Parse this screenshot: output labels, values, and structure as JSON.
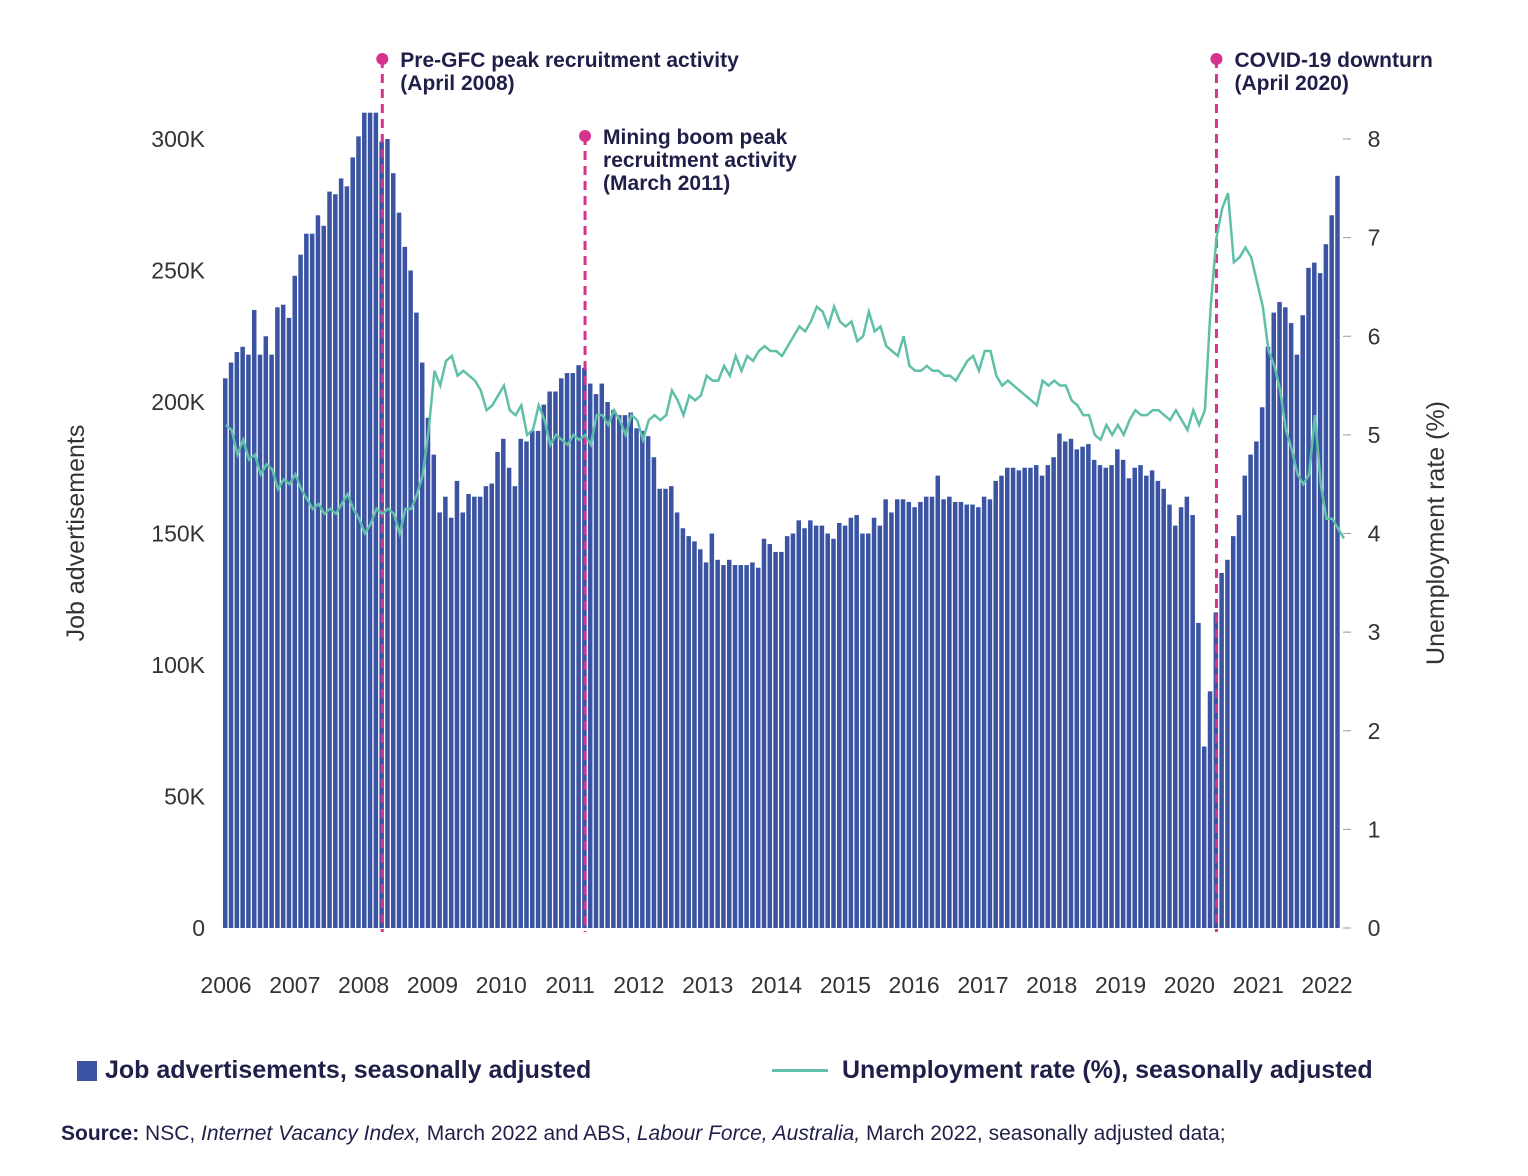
{
  "chart_data": {
    "type": "bar+line",
    "title": "",
    "ylabel_left": "Job advertisements",
    "ylabel_right": "Unemployment rate (%)",
    "y_left_ticks": [
      "0",
      "50K",
      "100K",
      "150K",
      "200K",
      "250K",
      "300K"
    ],
    "y_left_range": [
      0,
      300000
    ],
    "y_right_ticks": [
      "0",
      "1",
      "2",
      "3",
      "4",
      "5",
      "6",
      "7",
      "8"
    ],
    "y_right_range": [
      0,
      8
    ],
    "x_ticks": [
      "2006",
      "2007",
      "2008",
      "2009",
      "2010",
      "2011",
      "2012",
      "2013",
      "2014",
      "2015",
      "2016",
      "2017",
      "2018",
      "2019",
      "2020",
      "2021",
      "2022"
    ],
    "start_year": 2006,
    "series": [
      {
        "name": "Job advertisements, seasonally adjusted",
        "type": "bar",
        "axis": "left",
        "color": "#3a54a3",
        "values": [
          209000,
          215000,
          219000,
          221000,
          218000,
          235000,
          218000,
          225000,
          218000,
          236000,
          237000,
          232000,
          248000,
          256000,
          264000,
          264000,
          271000,
          267000,
          280000,
          279000,
          285000,
          282000,
          293000,
          301000,
          310000,
          310000,
          310000,
          299000,
          300000,
          287000,
          272000,
          259000,
          250000,
          234000,
          215000,
          194000,
          180000,
          158000,
          164000,
          156000,
          170000,
          158000,
          165000,
          164000,
          164000,
          168000,
          169000,
          181000,
          186000,
          175000,
          168000,
          186000,
          185000,
          189000,
          189000,
          199000,
          204000,
          204000,
          209000,
          211000,
          211000,
          214000,
          213000,
          207000,
          203000,
          207000,
          200000,
          197000,
          195000,
          195000,
          196000,
          190000,
          189000,
          187000,
          179000,
          167000,
          167000,
          168000,
          158000,
          152000,
          149000,
          147000,
          144000,
          139000,
          150000,
          140000,
          138000,
          140000,
          138000,
          138000,
          138000,
          139000,
          137000,
          148000,
          146000,
          143000,
          143000,
          149000,
          150000,
          155000,
          152000,
          155000,
          153000,
          153000,
          150000,
          148000,
          154000,
          153000,
          156000,
          157000,
          150000,
          150000,
          156000,
          153000,
          163000,
          158000,
          163000,
          163000,
          162000,
          160000,
          162000,
          164000,
          164000,
          172000,
          163000,
          164000,
          162000,
          162000,
          161000,
          161000,
          160000,
          164000,
          163000,
          170000,
          172000,
          175000,
          175000,
          174000,
          175000,
          175000,
          176000,
          172000,
          176000,
          179000,
          188000,
          185000,
          186000,
          182000,
          183000,
          184000,
          178000,
          176000,
          175000,
          176000,
          182000,
          178000,
          171000,
          175000,
          176000,
          172000,
          174000,
          170000,
          167000,
          161000,
          153000,
          160000,
          164000,
          157000,
          116000,
          69000,
          90000,
          120000,
          135000,
          140000,
          149000,
          157000,
          172000,
          180000,
          185000,
          198000,
          221000,
          234000,
          238000,
          236000,
          230000,
          218000,
          233000,
          251000,
          253000,
          249000,
          260000,
          271000,
          286000
        ]
      },
      {
        "name": "Unemployment rate (%), seasonally adjusted",
        "type": "line",
        "axis": "right",
        "color": "#5fbfa8",
        "values": [
          5.1,
          5.05,
          4.8,
          4.95,
          4.75,
          4.8,
          4.6,
          4.7,
          4.65,
          4.45,
          4.55,
          4.5,
          4.6,
          4.45,
          4.35,
          4.25,
          4.3,
          4.2,
          4.25,
          4.2,
          4.3,
          4.4,
          4.25,
          4.15,
          4.0,
          4.1,
          4.25,
          4.2,
          4.25,
          4.2,
          4.0,
          4.25,
          4.25,
          4.4,
          4.6,
          5.05,
          5.65,
          5.5,
          5.75,
          5.8,
          5.6,
          5.65,
          5.6,
          5.55,
          5.45,
          5.25,
          5.3,
          5.4,
          5.5,
          5.25,
          5.2,
          5.3,
          5.0,
          5.05,
          5.3,
          5.15,
          4.9,
          5.0,
          4.95,
          4.9,
          5.0,
          4.95,
          5.0,
          4.9,
          5.2,
          5.2,
          5.1,
          5.25,
          5.15,
          5.0,
          5.2,
          5.15,
          4.95,
          5.15,
          5.2,
          5.15,
          5.2,
          5.45,
          5.35,
          5.2,
          5.4,
          5.35,
          5.4,
          5.6,
          5.55,
          5.55,
          5.7,
          5.6,
          5.8,
          5.65,
          5.8,
          5.75,
          5.85,
          5.9,
          5.85,
          5.85,
          5.8,
          5.9,
          6.0,
          6.1,
          6.05,
          6.15,
          6.3,
          6.25,
          6.1,
          6.3,
          6.15,
          6.1,
          6.15,
          5.95,
          6.0,
          6.25,
          6.05,
          6.1,
          5.9,
          5.85,
          5.8,
          6.0,
          5.7,
          5.65,
          5.65,
          5.7,
          5.65,
          5.65,
          5.6,
          5.6,
          5.55,
          5.65,
          5.75,
          5.8,
          5.65,
          5.85,
          5.85,
          5.6,
          5.5,
          5.55,
          5.5,
          5.45,
          5.4,
          5.35,
          5.3,
          5.55,
          5.5,
          5.55,
          5.5,
          5.5,
          5.35,
          5.3,
          5.2,
          5.2,
          5.0,
          4.95,
          5.1,
          5.0,
          5.1,
          5.0,
          5.15,
          5.25,
          5.2,
          5.2,
          5.25,
          5.25,
          5.2,
          5.15,
          5.25,
          5.15,
          5.05,
          5.25,
          5.1,
          5.25,
          6.3,
          7.0,
          7.3,
          7.45,
          6.75,
          6.8,
          6.9,
          6.8,
          6.55,
          6.3,
          5.85,
          5.7,
          5.45,
          5.05,
          4.85,
          4.6,
          4.5,
          4.6,
          5.2,
          4.5,
          4.15,
          4.15,
          4.05,
          3.95
        ]
      }
    ],
    "annotations": [
      {
        "label_line1": "Pre-GFC peak recruitment activity",
        "label_line2": "(April 2008)",
        "label_line3": "",
        "month_index": 27
      },
      {
        "label_line1": "Mining boom peak",
        "label_line2": "recruitment activity",
        "label_line3": "(March 2011)",
        "month_index": 62
      },
      {
        "label_line1": "COVID-19 downturn",
        "label_line2": " (April 2020)",
        "label_line3": "",
        "month_index": 171
      }
    ],
    "annotation_color": "#d6338f",
    "legend_position": "bottom"
  },
  "legend": {
    "bar_label": "Job advertisements, seasonally adjusted",
    "line_label": "Unemployment rate (%), seasonally adjusted"
  },
  "source": {
    "prefix": "Source:",
    "part1": " NSC, ",
    "italic1": "Internet Vacancy Index,",
    "part2": " March 2022 and ABS, ",
    "italic2": "Labour Force, Australia,",
    "part3": " March 2022, seasonally adjusted data;"
  }
}
